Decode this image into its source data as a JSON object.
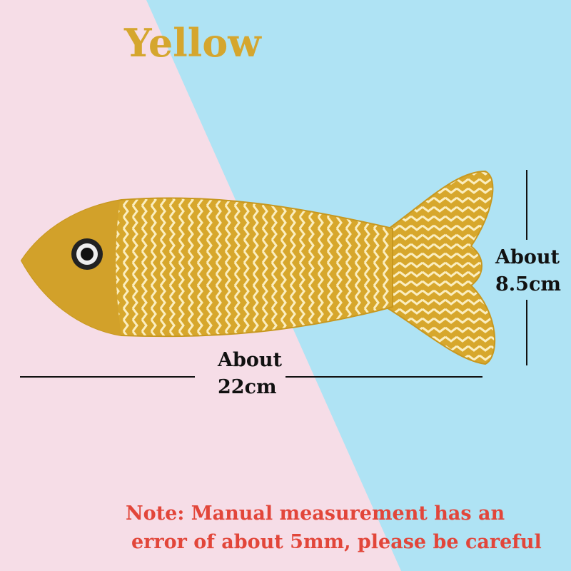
{
  "title": "Yellow",
  "product_color": "#d5a62e",
  "dimensions": {
    "length": {
      "line1": "About",
      "line2": "22cm"
    },
    "height": {
      "line1": "About",
      "line2": "8.5cm"
    }
  },
  "note": {
    "line1": "Note: Manual measurement has an",
    "line2": "error of about 5mm, please be careful",
    "color": "#e2463a"
  },
  "background": {
    "left": "#f6dde7",
    "right": "#afe3f4"
  }
}
